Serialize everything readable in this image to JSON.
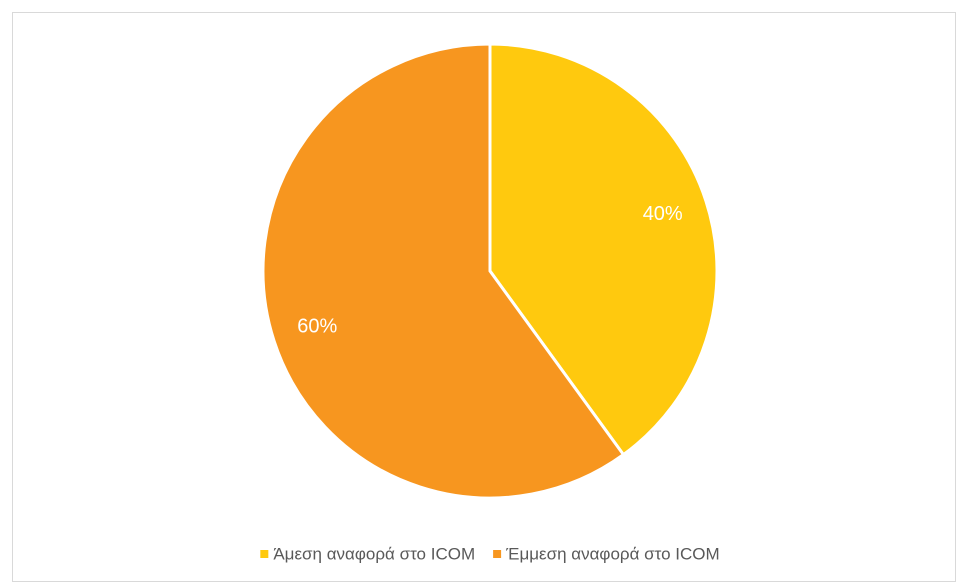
{
  "chart_data": {
    "type": "pie",
    "categories": [
      "Άμεση αναφορά στο ICOM",
      "Έμμεση αναφορά στο ICOM"
    ],
    "values": [
      40,
      60
    ],
    "value_labels": [
      "40%",
      "60%"
    ],
    "colors": [
      "#FFC90E",
      "#F7961F"
    ],
    "legend": "bottom"
  }
}
